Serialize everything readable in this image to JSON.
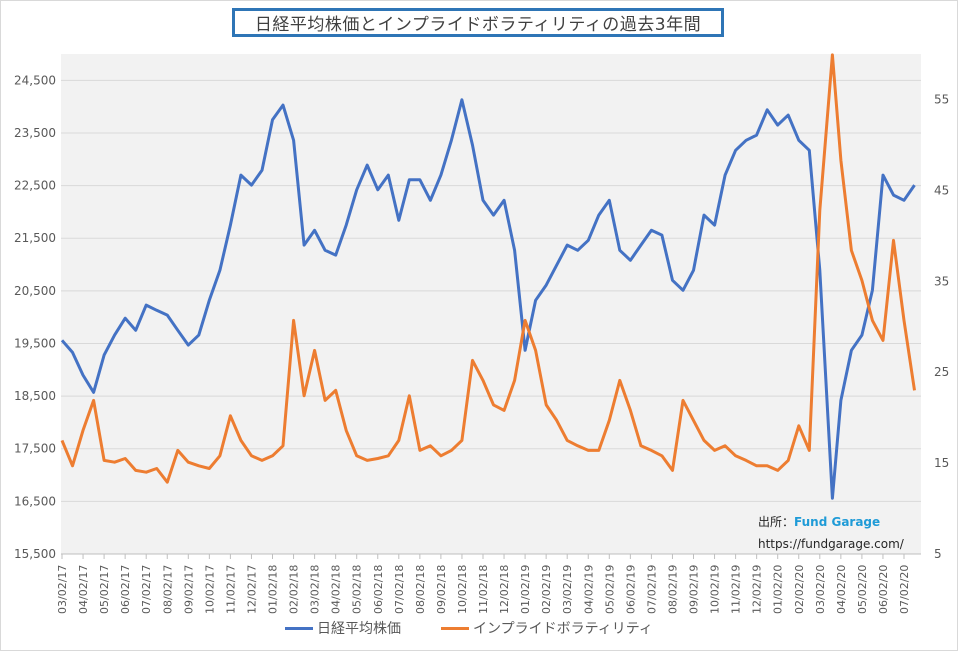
{
  "title": "日経平均株価とインプライドボラティリティの過去3年間",
  "source": {
    "label": "出所：",
    "brand": "Fund Garage",
    "url_text": "https://fundgarage.com/"
  },
  "colors": {
    "nikkei": "#4472c4",
    "iv": "#ed7d31",
    "plot_bg": "#f2f2f2",
    "grid": "#d9d9d9",
    "title_border": "#2e75b6"
  },
  "chart_data": {
    "type": "line",
    "title": "日経平均株価とインプライドボラティリティの過去3年間",
    "xlabel": "",
    "ylabel_left": "",
    "ylabel_right": "",
    "grid": true,
    "legend_position": "bottom",
    "x_ticks": [
      "03/02/17",
      "04/02/17",
      "05/02/17",
      "06/02/17",
      "07/02/17",
      "08/02/17",
      "09/02/17",
      "10/02/17",
      "11/02/17",
      "12/02/17",
      "01/02/18",
      "02/02/18",
      "03/02/18",
      "04/02/18",
      "05/02/18",
      "06/02/18",
      "07/02/18",
      "08/02/18",
      "09/02/18",
      "10/02/18",
      "11/02/18",
      "12/02/18",
      "01/02/19",
      "02/02/19",
      "03/02/19",
      "04/02/19",
      "05/02/19",
      "06/02/19",
      "07/02/19",
      "08/02/19",
      "09/02/19",
      "10/02/19",
      "11/02/19",
      "12/02/19",
      "01/02/20",
      "02/02/20",
      "03/02/20",
      "04/02/20",
      "05/02/20",
      "06/02/20",
      "07/02/20"
    ],
    "y_left": {
      "ticks": [
        "15,500",
        "16,500",
        "17,500",
        "18,500",
        "19,500",
        "20,500",
        "21,500",
        "22,500",
        "23,500",
        "24,500"
      ],
      "range": [
        15500,
        25000
      ]
    },
    "y_right": {
      "ticks": [
        "5",
        "15",
        "25",
        "35",
        "45",
        "55"
      ],
      "range": [
        5,
        60
      ]
    },
    "x": [
      "03/02/17",
      "03/17/17",
      "04/02/17",
      "04/17/17",
      "05/02/17",
      "05/17/17",
      "06/02/17",
      "06/17/17",
      "07/02/17",
      "07/17/17",
      "08/02/17",
      "08/17/17",
      "09/02/17",
      "09/17/17",
      "10/02/17",
      "10/17/17",
      "11/02/17",
      "11/17/17",
      "12/02/17",
      "12/17/17",
      "01/02/18",
      "01/17/18",
      "02/02/18",
      "02/17/18",
      "03/02/18",
      "03/17/18",
      "04/02/18",
      "04/17/18",
      "05/02/18",
      "05/17/18",
      "06/02/18",
      "06/17/18",
      "07/02/18",
      "07/17/18",
      "08/02/18",
      "08/17/18",
      "09/02/18",
      "09/17/18",
      "10/02/18",
      "10/17/18",
      "11/02/18",
      "11/17/18",
      "12/02/18",
      "12/17/18",
      "01/02/19",
      "01/17/19",
      "02/02/19",
      "02/17/19",
      "03/02/19",
      "03/17/19",
      "04/02/19",
      "04/17/19",
      "05/02/19",
      "05/17/19",
      "06/02/19",
      "06/17/19",
      "07/02/19",
      "07/17/19",
      "08/02/19",
      "08/17/19",
      "09/02/19",
      "09/17/19",
      "10/02/19",
      "10/17/19",
      "11/02/19",
      "11/17/19",
      "12/02/19",
      "12/17/19",
      "01/02/20",
      "01/17/20",
      "02/02/20",
      "02/17/20",
      "03/02/20",
      "03/17/20",
      "04/02/20",
      "04/17/20",
      "05/02/20",
      "05/17/20",
      "06/02/20",
      "06/17/20",
      "07/02/20",
      "07/17/20"
    ],
    "series": [
      {
        "name": "日経平均株価",
        "axis": "left",
        "values": [
          19560,
          19330,
          18900,
          18570,
          19280,
          19660,
          19980,
          19750,
          20230,
          20130,
          20040,
          19750,
          19470,
          19660,
          20320,
          20890,
          21750,
          22700,
          22510,
          22790,
          23750,
          24030,
          23360,
          21370,
          21650,
          21270,
          21180,
          21750,
          22420,
          22890,
          22420,
          22700,
          21840,
          22610,
          22610,
          22220,
          22700,
          23360,
          24130,
          23270,
          22220,
          21940,
          22220,
          21270,
          19370,
          20320,
          20610,
          20990,
          21370,
          21270,
          21460,
          21940,
          22220,
          21270,
          21080,
          21370,
          21650,
          21560,
          20700,
          20510,
          20890,
          21940,
          21750,
          22700,
          23170,
          23360,
          23460,
          23940,
          23650,
          23840,
          23360,
          23170,
          20890,
          16560,
          18420,
          19370,
          19660,
          20510,
          22700,
          22320,
          22220,
          22510
        ]
      },
      {
        "name": "インプライドボラティリティ",
        "axis": "right",
        "values": [
          17.5,
          14.7,
          18.6,
          21.9,
          15.3,
          15.1,
          15.5,
          14.2,
          14.0,
          14.4,
          12.9,
          16.4,
          15.1,
          14.7,
          14.4,
          15.8,
          20.2,
          17.5,
          15.8,
          15.3,
          15.8,
          16.9,
          30.7,
          22.4,
          27.4,
          21.9,
          23.0,
          18.6,
          15.8,
          15.3,
          15.5,
          15.8,
          17.5,
          22.4,
          16.4,
          16.9,
          15.8,
          16.4,
          17.5,
          26.3,
          24.1,
          21.4,
          20.8,
          24.1,
          30.7,
          27.4,
          21.4,
          19.7,
          17.5,
          16.9,
          16.4,
          16.4,
          19.7,
          24.1,
          20.8,
          16.9,
          16.4,
          15.8,
          14.2,
          21.9,
          19.7,
          17.5,
          16.4,
          16.9,
          15.8,
          15.3,
          14.7,
          14.7,
          14.2,
          15.3,
          19.1,
          16.4,
          42.8,
          59.9,
          48.3,
          38.4,
          35.1,
          30.7,
          28.5,
          39.5,
          30.7,
          23.0
        ]
      }
    ]
  }
}
